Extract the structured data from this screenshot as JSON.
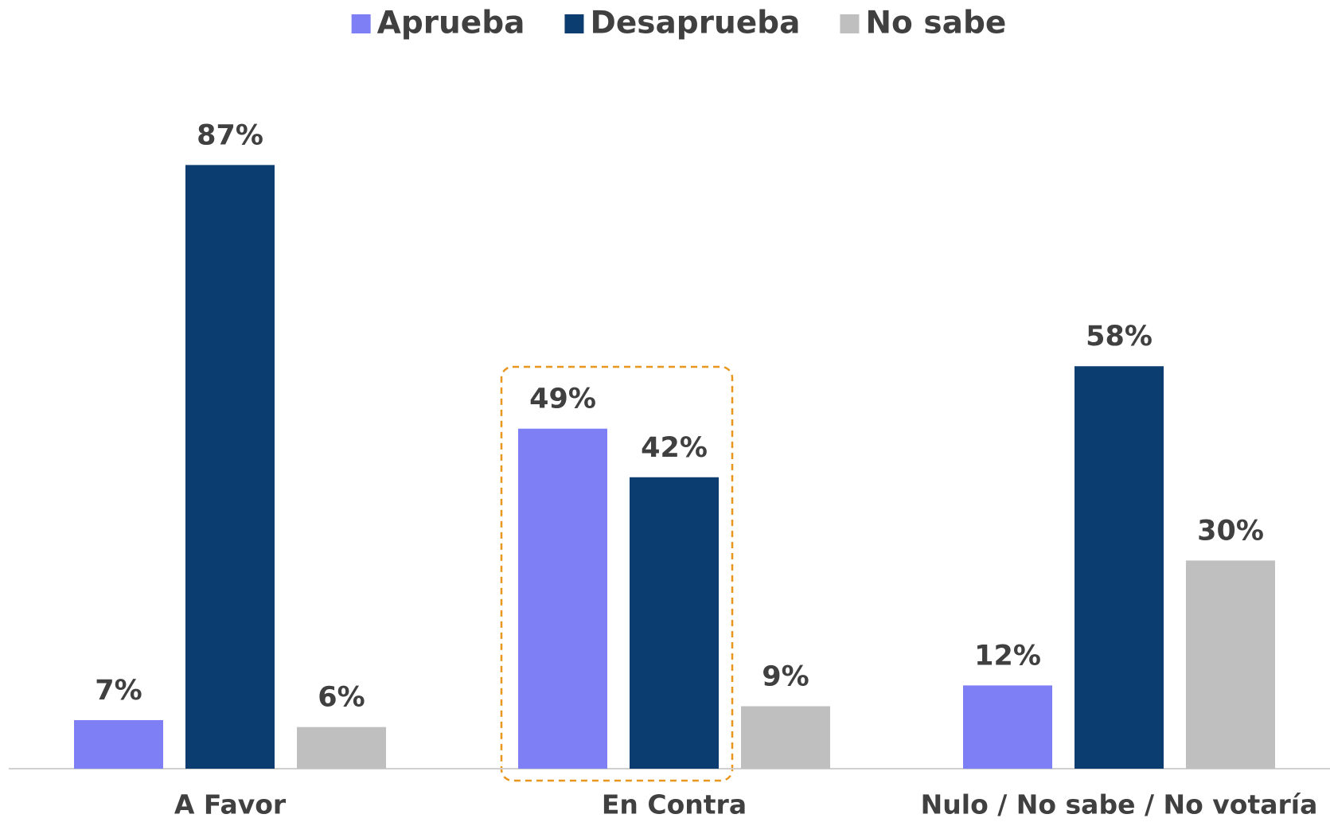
{
  "chart_data": {
    "type": "bar",
    "categories": [
      "A Favor",
      "En Contra",
      "Nulo / No sabe / No votaría"
    ],
    "series": [
      {
        "name": "Aprueba",
        "color": "#7f7ff5",
        "values": [
          7,
          49,
          12
        ],
        "value_labels": [
          "7%",
          "49%",
          "12%"
        ]
      },
      {
        "name": "Desaprueba",
        "color": "#0b3d70",
        "values": [
          87,
          42,
          58
        ],
        "value_labels": [
          "87%",
          "42%",
          "58%"
        ]
      },
      {
        "name": "No sabe",
        "color": "#bfbfbf",
        "values": [
          6,
          9,
          30
        ],
        "value_labels": [
          "6%",
          "9%",
          "30%"
        ]
      }
    ],
    "ylim": [
      0,
      100
    ],
    "legend": "top"
  }
}
